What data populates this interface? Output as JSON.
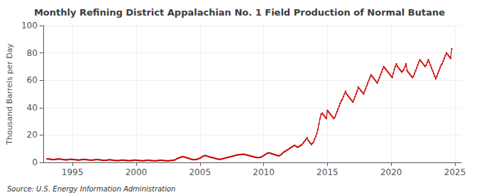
{
  "chart_data": {
    "type": "line",
    "title": "Monthly Refining District Appalachian No. 1 Field Production of Normal Butane",
    "ylabel": "Thousand Barrels per Day",
    "annotations": [
      "Source: U.S. Energy Information Administration"
    ],
    "color": "#cc0000",
    "marker": "square",
    "grid": true,
    "xlim": [
      1992.7,
      2025.5
    ],
    "xticks": [
      1995,
      2000,
      2005,
      2010,
      2015,
      2020,
      2025
    ],
    "ylim": [
      0,
      100
    ],
    "yticks": [
      0,
      20,
      40,
      60,
      80,
      100
    ],
    "x": [
      1993.0,
      1993.083,
      1993.167,
      1993.25,
      1993.333,
      1993.417,
      1993.5,
      1993.583,
      1993.667,
      1993.75,
      1993.833,
      1993.917,
      1994.0,
      1994.083,
      1994.167,
      1994.25,
      1994.333,
      1994.417,
      1994.5,
      1994.583,
      1994.667,
      1994.75,
      1994.833,
      1994.917,
      1995.0,
      1995.083,
      1995.167,
      1995.25,
      1995.333,
      1995.417,
      1995.5,
      1995.583,
      1995.667,
      1995.75,
      1995.833,
      1995.917,
      1996.0,
      1996.083,
      1996.167,
      1996.25,
      1996.333,
      1996.417,
      1996.5,
      1996.583,
      1996.667,
      1996.75,
      1996.833,
      1996.917,
      1997.0,
      1997.083,
      1997.167,
      1997.25,
      1997.333,
      1997.417,
      1997.5,
      1997.583,
      1997.667,
      1997.75,
      1997.833,
      1997.917,
      1998.0,
      1998.083,
      1998.167,
      1998.25,
      1998.333,
      1998.417,
      1998.5,
      1998.583,
      1998.667,
      1998.75,
      1998.833,
      1998.917,
      1999.0,
      1999.083,
      1999.167,
      1999.25,
      1999.333,
      1999.417,
      1999.5,
      1999.583,
      1999.667,
      1999.75,
      1999.833,
      1999.917,
      2000.0,
      2000.083,
      2000.167,
      2000.25,
      2000.333,
      2000.417,
      2000.5,
      2000.583,
      2000.667,
      2000.75,
      2000.833,
      2000.917,
      2001.0,
      2001.083,
      2001.167,
      2001.25,
      2001.333,
      2001.417,
      2001.5,
      2001.583,
      2001.667,
      2001.75,
      2001.833,
      2001.917,
      2002.0,
      2002.083,
      2002.167,
      2002.25,
      2002.333,
      2002.417,
      2002.5,
      2002.583,
      2002.667,
      2002.75,
      2002.833,
      2002.917,
      2003.0,
      2003.083,
      2003.167,
      2003.25,
      2003.333,
      2003.417,
      2003.5,
      2003.583,
      2003.667,
      2003.75,
      2003.833,
      2003.917,
      2004.0,
      2004.083,
      2004.167,
      2004.25,
      2004.333,
      2004.417,
      2004.5,
      2004.583,
      2004.667,
      2004.75,
      2004.833,
      2004.917,
      2005.0,
      2005.083,
      2005.167,
      2005.25,
      2005.333,
      2005.417,
      2005.5,
      2005.583,
      2005.667,
      2005.75,
      2005.833,
      2005.917,
      2006.0,
      2006.083,
      2006.167,
      2006.25,
      2006.333,
      2006.417,
      2006.5,
      2006.583,
      2006.667,
      2006.75,
      2006.833,
      2006.917,
      2007.0,
      2007.083,
      2007.167,
      2007.25,
      2007.333,
      2007.417,
      2007.5,
      2007.583,
      2007.667,
      2007.75,
      2007.833,
      2007.917,
      2008.0,
      2008.083,
      2008.167,
      2008.25,
      2008.333,
      2008.417,
      2008.5,
      2008.583,
      2008.667,
      2008.75,
      2008.833,
      2008.917,
      2009.0,
      2009.083,
      2009.167,
      2009.25,
      2009.333,
      2009.417,
      2009.5,
      2009.583,
      2009.667,
      2009.75,
      2009.833,
      2009.917,
      2010.0,
      2010.083,
      2010.167,
      2010.25,
      2010.333,
      2010.417,
      2010.5,
      2010.583,
      2010.667,
      2010.75,
      2010.833,
      2010.917,
      2011.0,
      2011.083,
      2011.167,
      2011.25,
      2011.333,
      2011.417,
      2011.5,
      2011.583,
      2011.667,
      2011.75,
      2011.833,
      2011.917,
      2012.0,
      2012.083,
      2012.167,
      2012.25,
      2012.333,
      2012.417,
      2012.5,
      2012.583,
      2012.667,
      2012.75,
      2012.833,
      2012.917,
      2013.0,
      2013.083,
      2013.167,
      2013.25,
      2013.333,
      2013.417,
      2013.5,
      2013.583,
      2013.667,
      2013.75,
      2013.833,
      2013.917,
      2014.0,
      2014.083,
      2014.167,
      2014.25,
      2014.333,
      2014.417,
      2014.5,
      2014.583,
      2014.667,
      2014.75,
      2014.833,
      2014.917,
      2015.0,
      2015.083,
      2015.167,
      2015.25,
      2015.333,
      2015.417,
      2015.5,
      2015.583,
      2015.667,
      2015.75,
      2015.833,
      2015.917,
      2016.0,
      2016.083,
      2016.167,
      2016.25,
      2016.333,
      2016.417,
      2016.5,
      2016.583,
      2016.667,
      2016.75,
      2016.833,
      2016.917,
      2017.0,
      2017.083,
      2017.167,
      2017.25,
      2017.333,
      2017.417,
      2017.5,
      2017.583,
      2017.667,
      2017.75,
      2017.833,
      2017.917,
      2018.0,
      2018.083,
      2018.167,
      2018.25,
      2018.333,
      2018.417,
      2018.5,
      2018.583,
      2018.667,
      2018.75,
      2018.833,
      2018.917,
      2019.0,
      2019.083,
      2019.167,
      2019.25,
      2019.333,
      2019.417,
      2019.5,
      2019.583,
      2019.667,
      2019.75,
      2019.833,
      2019.917,
      2020.0,
      2020.083,
      2020.167,
      2020.25,
      2020.333,
      2020.417,
      2020.5,
      2020.583,
      2020.667,
      2020.75,
      2020.833,
      2020.917,
      2021.0,
      2021.083,
      2021.167,
      2021.25,
      2021.333,
      2021.417,
      2021.5,
      2021.583,
      2021.667,
      2021.75,
      2021.833,
      2021.917,
      2022.0,
      2022.083,
      2022.167,
      2022.25,
      2022.333,
      2022.417,
      2022.5,
      2022.583,
      2022.667,
      2022.75,
      2022.833,
      2022.917,
      2023.0,
      2023.083,
      2023.167,
      2023.25,
      2023.333,
      2023.417,
      2023.5,
      2023.583,
      2023.667,
      2023.75,
      2023.833,
      2023.917,
      2024.0,
      2024.083,
      2024.167,
      2024.25,
      2024.333,
      2024.417,
      2024.5,
      2024.583,
      2024.667,
      2024.75
    ],
    "values": [
      2.5,
      2.6,
      2.4,
      2.3,
      2.2,
      2.1,
      2.0,
      2.1,
      2.2,
      2.3,
      2.4,
      2.5,
      2.4,
      2.3,
      2.2,
      2.1,
      2.0,
      1.9,
      1.8,
      1.9,
      2.0,
      2.1,
      2.2,
      2.3,
      2.2,
      2.1,
      2.0,
      1.9,
      1.8,
      1.8,
      1.7,
      1.8,
      1.9,
      2.0,
      2.1,
      2.2,
      2.1,
      2.0,
      1.9,
      1.8,
      1.7,
      1.7,
      1.6,
      1.7,
      1.8,
      1.9,
      2.0,
      2.1,
      2.0,
      1.9,
      1.8,
      1.7,
      1.6,
      1.5,
      1.5,
      1.5,
      1.6,
      1.7,
      1.8,
      1.9,
      1.8,
      1.7,
      1.6,
      1.5,
      1.4,
      1.3,
      1.3,
      1.3,
      1.4,
      1.5,
      1.6,
      1.7,
      1.6,
      1.5,
      1.4,
      1.4,
      1.3,
      1.3,
      1.2,
      1.3,
      1.4,
      1.5,
      1.6,
      1.7,
      1.6,
      1.5,
      1.4,
      1.3,
      1.3,
      1.2,
      1.2,
      1.2,
      1.3,
      1.4,
      1.5,
      1.6,
      1.5,
      1.4,
      1.4,
      1.3,
      1.2,
      1.2,
      1.1,
      1.2,
      1.3,
      1.4,
      1.5,
      1.6,
      1.5,
      1.4,
      1.3,
      1.3,
      1.2,
      1.2,
      1.1,
      1.2,
      1.3,
      1.4,
      1.5,
      1.6,
      1.7,
      2.0,
      2.5,
      3.0,
      3.2,
      3.5,
      3.8,
      4.0,
      4.2,
      4.0,
      3.8,
      3.5,
      3.3,
      3.0,
      2.8,
      2.5,
      2.3,
      2.2,
      2.0,
      2.0,
      2.1,
      2.2,
      2.5,
      2.8,
      3.0,
      3.5,
      4.0,
      4.5,
      4.8,
      5.0,
      4.8,
      4.5,
      4.2,
      4.0,
      3.8,
      3.5,
      3.5,
      3.2,
      3.0,
      2.8,
      2.6,
      2.4,
      2.2,
      2.3,
      2.4,
      2.6,
      2.8,
      3.0,
      3.2,
      3.4,
      3.6,
      3.8,
      4.0,
      4.2,
      4.4,
      4.6,
      4.8,
      5.0,
      5.2,
      5.4,
      5.5,
      5.6,
      5.7,
      5.8,
      5.9,
      6.0,
      5.8,
      5.6,
      5.4,
      5.2,
      5.0,
      4.8,
      4.6,
      4.4,
      4.2,
      4.0,
      3.8,
      3.6,
      3.5,
      3.5,
      3.6,
      3.8,
      4.0,
      4.5,
      5.0,
      5.5,
      6.0,
      6.5,
      6.8,
      7.0,
      6.8,
      6.5,
      6.2,
      6.0,
      5.8,
      5.5,
      5.2,
      5.0,
      4.8,
      5.0,
      5.5,
      6.0,
      7.0,
      7.5,
      8.0,
      8.5,
      9.0,
      9.5,
      10.0,
      10.5,
      11.0,
      11.5,
      12.0,
      12.5,
      12.0,
      11.5,
      11.0,
      11.5,
      12.0,
      12.5,
      13.0,
      14.0,
      15.0,
      16.0,
      17.0,
      18.0,
      16.0,
      15.0,
      14.0,
      13.0,
      14.0,
      15.0,
      17.0,
      19.0,
      21.0,
      24.0,
      28.0,
      32.0,
      35.0,
      36.0,
      35.0,
      34.0,
      33.0,
      32.0,
      38.0,
      37.0,
      36.0,
      35.0,
      34.0,
      33.0,
      32.0,
      33.0,
      35.0,
      37.0,
      39.0,
      41.0,
      43.0,
      45.0,
      46.0,
      48.0,
      50.0,
      52.0,
      50.0,
      49.0,
      48.0,
      47.0,
      46.0,
      45.0,
      44.0,
      46.0,
      48.0,
      50.0,
      52.0,
      55.0,
      54.0,
      53.0,
      52.0,
      51.0,
      50.0,
      52.0,
      54.0,
      56.0,
      58.0,
      60.0,
      62.0,
      64.0,
      63.0,
      62.0,
      61.0,
      60.0,
      59.0,
      58.0,
      60.0,
      62.0,
      64.0,
      66.0,
      68.0,
      70.0,
      69.0,
      68.0,
      67.0,
      66.0,
      65.0,
      64.0,
      63.0,
      62.0,
      65.0,
      68.0,
      70.0,
      72.0,
      70.0,
      69.0,
      68.0,
      67.0,
      66.0,
      67.0,
      68.0,
      70.0,
      72.0,
      67.0,
      66.0,
      65.0,
      64.0,
      63.0,
      62.0,
      63.0,
      65.0,
      67.0,
      69.0,
      71.0,
      73.0,
      75.0,
      74.0,
      73.0,
      72.0,
      71.0,
      70.0,
      71.0,
      73.0,
      75.0,
      73.0,
      71.0,
      69.0,
      67.0,
      65.0,
      63.0,
      61.0,
      63.0,
      65.0,
      67.0,
      69.0,
      71.0,
      72.0,
      74.0,
      76.0,
      78.0,
      80.0,
      79.0,
      78.0,
      77.0,
      76.0,
      83.0
    ]
  }
}
